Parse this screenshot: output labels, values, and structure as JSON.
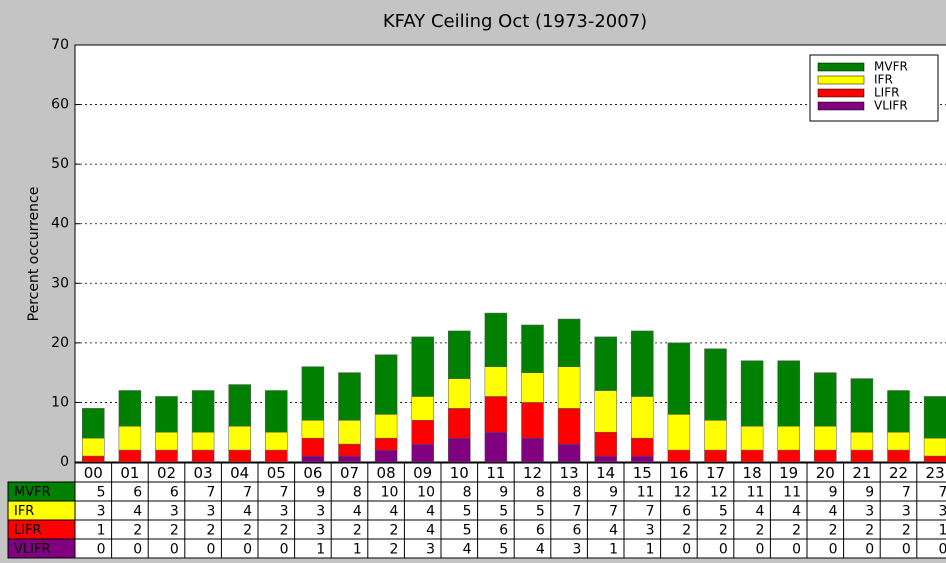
{
  "chart_data": {
    "type": "stacked_bar",
    "title": "KFAY Ceiling Oct (1973-2007)",
    "ylabel": "Percent occurrence",
    "categories": [
      "00",
      "01",
      "02",
      "03",
      "04",
      "05",
      "06",
      "07",
      "08",
      "09",
      "10",
      "11",
      "12",
      "13",
      "14",
      "15",
      "16",
      "17",
      "18",
      "19",
      "20",
      "21",
      "22",
      "23"
    ],
    "series": [
      {
        "name": "MVFR",
        "color": "#008000",
        "values": [
          5,
          6,
          6,
          7,
          7,
          7,
          9,
          8,
          10,
          10,
          8,
          9,
          8,
          8,
          9,
          11,
          12,
          12,
          11,
          11,
          9,
          9,
          7,
          7
        ]
      },
      {
        "name": "IFR",
        "color": "#ffff00",
        "values": [
          3,
          4,
          3,
          3,
          4,
          3,
          3,
          4,
          4,
          4,
          5,
          5,
          5,
          7,
          7,
          7,
          6,
          5,
          4,
          4,
          4,
          3,
          3,
          3
        ]
      },
      {
        "name": "LIFR",
        "color": "#ff0000",
        "values": [
          1,
          2,
          2,
          2,
          2,
          2,
          3,
          2,
          2,
          4,
          5,
          6,
          6,
          6,
          4,
          3,
          2,
          2,
          2,
          2,
          2,
          2,
          2,
          1
        ]
      },
      {
        "name": "VLIFR",
        "color": "#800080",
        "values": [
          0,
          0,
          0,
          0,
          0,
          0,
          1,
          1,
          2,
          3,
          4,
          5,
          4,
          3,
          1,
          1,
          0,
          0,
          0,
          0,
          0,
          0,
          0,
          0
        ]
      }
    ],
    "ylim": [
      0,
      70
    ],
    "yticks": [
      0,
      10,
      20,
      30,
      40,
      50,
      60,
      70
    ],
    "grid": true,
    "legend": "upper right"
  }
}
